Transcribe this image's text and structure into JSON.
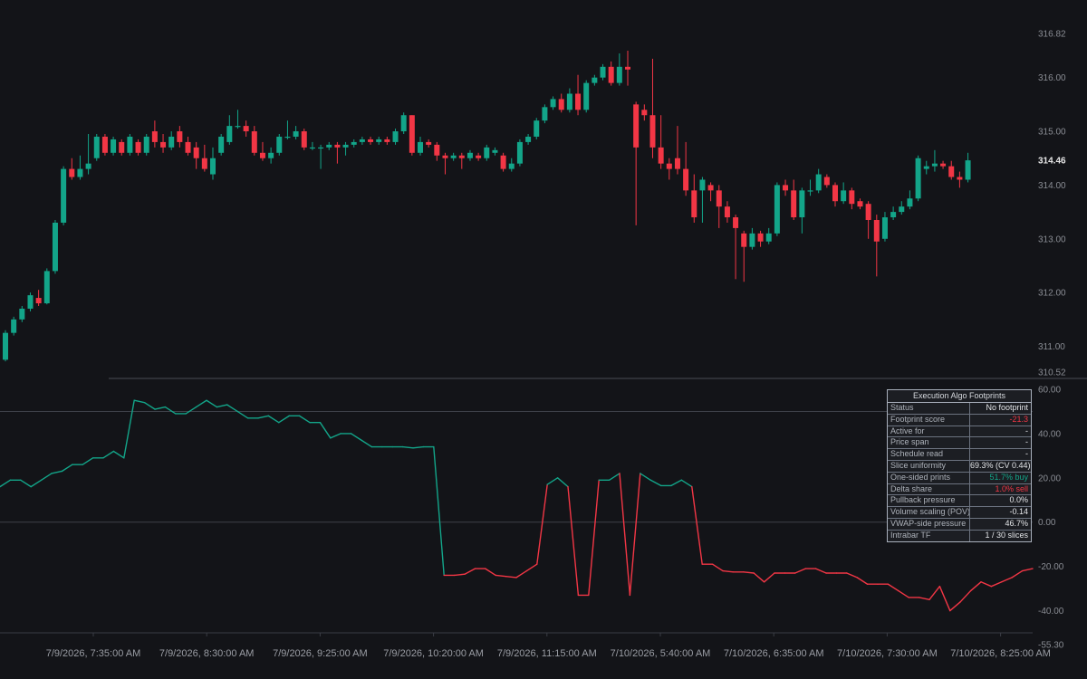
{
  "chart_data": [
    {
      "type": "candlestick",
      "price_axis": {
        "min": 310.52,
        "max": 316.82,
        "ticks": [
          "316.82",
          "316.00",
          "315.00",
          "314.00",
          "313.00",
          "312.00",
          "311.00",
          "310.52"
        ],
        "last_price_label": "314.46"
      },
      "colors": {
        "up": "#13a589",
        "down": "#f23645"
      },
      "candles": [
        [
          310.75,
          311.25,
          310.72,
          311.3
        ],
        [
          311.25,
          311.5,
          311.2,
          311.55
        ],
        [
          311.5,
          311.7,
          311.45,
          311.75
        ],
        [
          311.7,
          311.95,
          311.65,
          312.0
        ],
        [
          311.9,
          311.8,
          311.75,
          312.05
        ],
        [
          311.8,
          312.4,
          311.78,
          312.45
        ],
        [
          312.4,
          313.3,
          312.35,
          313.35
        ],
        [
          313.3,
          314.3,
          313.25,
          314.35
        ],
        [
          314.3,
          314.15,
          314.1,
          314.5
        ],
        [
          314.15,
          314.3,
          314.1,
          314.55
        ],
        [
          314.3,
          314.4,
          314.2,
          314.95
        ],
        [
          314.5,
          314.9,
          314.45,
          314.95
        ],
        [
          314.9,
          314.6,
          314.55,
          314.95
        ],
        [
          314.6,
          314.85,
          314.55,
          314.9
        ],
        [
          314.8,
          314.6,
          314.55,
          314.85
        ],
        [
          314.6,
          314.9,
          314.55,
          314.95
        ],
        [
          314.8,
          314.6,
          314.55,
          314.85
        ],
        [
          314.6,
          314.9,
          314.55,
          314.95
        ],
        [
          315.0,
          314.8,
          314.7,
          315.2
        ],
        [
          314.8,
          314.7,
          314.6,
          314.95
        ],
        [
          314.7,
          314.9,
          314.65,
          315.0
        ],
        [
          315.0,
          314.8,
          314.7,
          315.1
        ],
        [
          314.8,
          314.6,
          314.55,
          314.9
        ],
        [
          314.7,
          314.5,
          314.3,
          314.8
        ],
        [
          314.5,
          314.3,
          314.25,
          314.75
        ],
        [
          314.2,
          314.5,
          314.1,
          314.7
        ],
        [
          314.6,
          314.9,
          314.55,
          314.95
        ],
        [
          314.8,
          315.1,
          314.75,
          315.3
        ],
        [
          315.1,
          315.1,
          315.05,
          315.4
        ],
        [
          315.1,
          315.0,
          314.9,
          315.2
        ],
        [
          315.0,
          314.6,
          314.55,
          315.1
        ],
        [
          314.6,
          314.5,
          314.45,
          314.8
        ],
        [
          314.5,
          314.6,
          314.4,
          314.7
        ],
        [
          314.6,
          314.9,
          314.55,
          314.95
        ],
        [
          314.9,
          314.9,
          314.85,
          315.2
        ],
        [
          314.9,
          315.0,
          314.85,
          315.1
        ],
        [
          315.0,
          314.7,
          314.65,
          315.05
        ],
        [
          314.7,
          314.7,
          314.65,
          314.8
        ],
        [
          314.7,
          314.7,
          314.3,
          314.75
        ],
        [
          314.7,
          314.75,
          314.65,
          314.8
        ],
        [
          314.75,
          314.7,
          314.4,
          314.8
        ],
        [
          314.7,
          314.75,
          314.55,
          314.8
        ],
        [
          314.75,
          314.8,
          314.7,
          314.85
        ],
        [
          314.8,
          314.85,
          314.75,
          314.9
        ],
        [
          314.85,
          314.8,
          314.75,
          314.9
        ],
        [
          314.8,
          314.85,
          314.75,
          314.9
        ],
        [
          314.85,
          314.8,
          314.75,
          314.9
        ],
        [
          314.8,
          315.0,
          314.75,
          315.05
        ],
        [
          315.0,
          315.3,
          314.95,
          315.35
        ],
        [
          315.3,
          314.6,
          314.55,
          315.3
        ],
        [
          314.6,
          314.8,
          314.55,
          314.9
        ],
        [
          314.8,
          314.75,
          314.7,
          314.85
        ],
        [
          314.75,
          314.55,
          314.45,
          314.8
        ],
        [
          314.55,
          314.5,
          314.2,
          314.6
        ],
        [
          314.5,
          314.55,
          314.45,
          314.6
        ],
        [
          314.55,
          314.5,
          314.3,
          314.6
        ],
        [
          314.5,
          314.6,
          314.45,
          314.65
        ],
        [
          314.55,
          314.5,
          314.45,
          314.6
        ],
        [
          314.5,
          314.7,
          314.45,
          314.75
        ],
        [
          314.6,
          314.65,
          314.55,
          314.7
        ],
        [
          314.55,
          314.3,
          314.25,
          314.6
        ],
        [
          314.3,
          314.4,
          314.25,
          314.5
        ],
        [
          314.4,
          314.8,
          314.35,
          314.85
        ],
        [
          314.8,
          314.9,
          314.75,
          314.95
        ],
        [
          314.9,
          315.2,
          314.85,
          315.25
        ],
        [
          315.2,
          315.45,
          315.15,
          315.5
        ],
        [
          315.45,
          315.6,
          315.4,
          315.65
        ],
        [
          315.6,
          315.4,
          315.35,
          315.7
        ],
        [
          315.4,
          315.7,
          315.35,
          315.8
        ],
        [
          315.7,
          315.4,
          315.3,
          316.05
        ],
        [
          315.4,
          315.9,
          315.35,
          315.95
        ],
        [
          315.9,
          316.0,
          315.85,
          316.05
        ],
        [
          316.0,
          316.2,
          315.95,
          316.25
        ],
        [
          316.2,
          315.9,
          315.85,
          316.3
        ],
        [
          315.9,
          316.2,
          315.85,
          316.45
        ],
        [
          316.2,
          316.15,
          315.85,
          316.5
        ],
        [
          315.5,
          314.7,
          313.25,
          315.55
        ],
        [
          315.4,
          315.3,
          315.2,
          315.5
        ],
        [
          315.3,
          314.7,
          314.5,
          316.35
        ],
        [
          314.7,
          314.4,
          314.3,
          315.3
        ],
        [
          314.4,
          314.3,
          314.1,
          314.5
        ],
        [
          314.5,
          314.3,
          314.2,
          315.1
        ],
        [
          314.3,
          313.9,
          313.8,
          314.8
        ],
        [
          313.9,
          313.4,
          313.3,
          314.2
        ],
        [
          313.9,
          314.1,
          313.3,
          314.15
        ],
        [
          314.0,
          313.9,
          313.7,
          314.05
        ],
        [
          313.9,
          313.6,
          313.2,
          314.0
        ],
        [
          313.6,
          313.4,
          313.3,
          313.7
        ],
        [
          313.4,
          313.2,
          312.25,
          313.45
        ],
        [
          313.1,
          312.85,
          312.2,
          313.15
        ],
        [
          312.85,
          313.1,
          312.8,
          313.2
        ],
        [
          313.1,
          312.95,
          312.85,
          313.15
        ],
        [
          312.95,
          313.1,
          312.9,
          313.2
        ],
        [
          313.1,
          314.0,
          313.05,
          314.05
        ],
        [
          314.0,
          313.9,
          313.8,
          314.1
        ],
        [
          313.9,
          313.4,
          313.35,
          314.1
        ],
        [
          313.4,
          313.9,
          313.1,
          313.95
        ],
        [
          313.9,
          313.9,
          313.8,
          314.1
        ],
        [
          313.9,
          314.2,
          313.85,
          314.3
        ],
        [
          314.15,
          314.0,
          313.95,
          314.2
        ],
        [
          314.0,
          313.7,
          313.6,
          314.05
        ],
        [
          313.7,
          313.9,
          313.65,
          314.05
        ],
        [
          313.9,
          313.65,
          313.55,
          313.95
        ],
        [
          313.7,
          313.6,
          313.55,
          313.75
        ],
        [
          313.65,
          313.35,
          313.0,
          313.7
        ],
        [
          313.35,
          312.95,
          312.3,
          313.45
        ],
        [
          313.0,
          313.4,
          312.95,
          313.5
        ],
        [
          313.4,
          313.5,
          313.35,
          313.6
        ],
        [
          313.5,
          313.6,
          313.45,
          313.7
        ],
        [
          313.6,
          313.75,
          313.55,
          313.9
        ],
        [
          313.75,
          314.5,
          313.7,
          314.55
        ],
        [
          314.3,
          314.35,
          314.2,
          314.45
        ],
        [
          314.35,
          314.4,
          314.25,
          314.65
        ],
        [
          314.4,
          314.35,
          314.3,
          314.45
        ],
        [
          314.35,
          314.15,
          314.1,
          314.45
        ],
        [
          314.15,
          314.1,
          313.95,
          314.25
        ],
        [
          314.1,
          314.46,
          314.05,
          314.6
        ]
      ],
      "time_axis": [
        "7/9/2026, 7:35:00 AM",
        "7/9/2026, 8:30:00 AM",
        "7/9/2026, 9:25:00 AM",
        "7/9/2026, 10:20:00 AM",
        "7/9/2026, 11:15:00 AM",
        "7/10/2026, 5:40:00 AM",
        "7/10/2026, 6:35:00 AM",
        "7/10/2026, 7:30:00 AM",
        "7/10/2026, 8:25:00 AM"
      ]
    },
    {
      "type": "line",
      "oscillator_axis": {
        "min": -55.3,
        "max": 60,
        "ticks": [
          "60.00",
          "40.00",
          "20.00",
          "0.00",
          "-20.00",
          "-40.00",
          "-55.30"
        ],
        "reference_levels": [
          50,
          0
        ]
      },
      "colors": {
        "positive": "#13a589",
        "negative": "#f23645"
      },
      "values": [
        16,
        19,
        19,
        16,
        19,
        22,
        23,
        26,
        26,
        29,
        29,
        32,
        29,
        55,
        54,
        51,
        52,
        49,
        49,
        52,
        55,
        52,
        53,
        50,
        47,
        47,
        48,
        45,
        48,
        48,
        45,
        45,
        38,
        40,
        40,
        37,
        34,
        34,
        34,
        34,
        33.5,
        34,
        34,
        -24,
        -24,
        -23.5,
        -21,
        -21,
        -24,
        -24.5,
        -25,
        -22,
        -19,
        17,
        20,
        16,
        -33,
        -33,
        19,
        19,
        22,
        -33,
        22,
        19,
        16.5,
        16.5,
        19,
        16,
        -19,
        -19,
        -22,
        -22.5,
        -22.5,
        -23,
        -27,
        -23,
        -23,
        -23,
        -21,
        -21,
        -23,
        -23,
        -23,
        -25,
        -28,
        -28,
        -28,
        -31,
        -34,
        -34,
        -35,
        -29,
        -40,
        -36,
        -31,
        -27,
        -29,
        -27,
        -25,
        -22,
        -21
      ]
    }
  ],
  "info_panel": {
    "title": "Execution Algo Footprints",
    "rows": [
      {
        "label": "Status",
        "value": "No footprint",
        "color": "#e3e5e8"
      },
      {
        "label": "Footprint score",
        "value": "-21.3",
        "color": "#f23645"
      },
      {
        "label": "Active for",
        "value": "-",
        "color": "#e3e5e8"
      },
      {
        "label": "Price span",
        "value": "-",
        "color": "#e3e5e8"
      },
      {
        "label": "Schedule read",
        "value": "-",
        "color": "#e3e5e8"
      },
      {
        "label": "Slice uniformity",
        "value": "69.3% (CV 0.44)",
        "color": "#e3e5e8"
      },
      {
        "label": "One-sided prints",
        "value": "51.7% buy",
        "color": "#13a589"
      },
      {
        "label": "Delta share",
        "value": "1.0% sell",
        "color": "#f23645"
      },
      {
        "label": "Pullback pressure",
        "value": "0.0%",
        "color": "#e3e5e8"
      },
      {
        "label": "Volume scaling (POV)",
        "value": "-0.14",
        "color": "#e3e5e8"
      },
      {
        "label": "VWAP-side pressure",
        "value": "46.7%",
        "color": "#e3e5e8"
      },
      {
        "label": "Intrabar TF",
        "value": "1 / 30 slices",
        "color": "#e3e5e8"
      }
    ]
  }
}
